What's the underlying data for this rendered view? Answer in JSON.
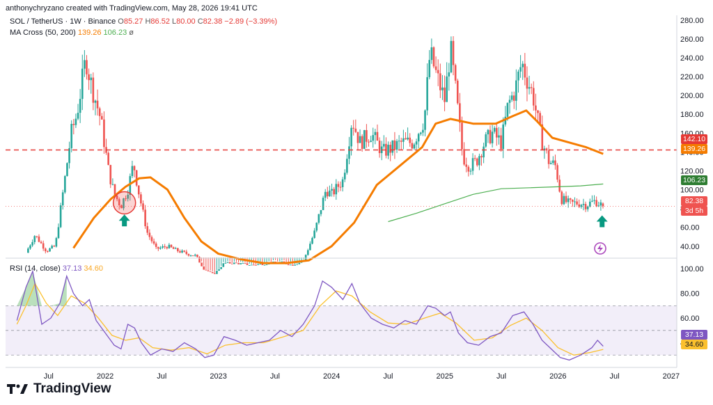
{
  "header": {
    "credit": "anthonychryzano created with TradingView.com, May 28, 2026 19:41 UTC"
  },
  "legend": {
    "symbol": "SOL / TetherUS · 1W · Binance",
    "o_label": "O",
    "o": "85.27",
    "h_label": "H",
    "h": "86.52",
    "l_label": "L",
    "l": "80.00",
    "c_label": "C",
    "c": "82.38",
    "change": "−2.89 (−3.39%)",
    "ma_title": "MA Cross (50, 200)",
    "ma50": "139.26",
    "ma200": "106.23",
    "ma_extra": "ø",
    "rsi_title": "RSI (14, close)",
    "rsi": "37.13",
    "rsi_ma": "34.60"
  },
  "price_tags": {
    "level": "142.10",
    "ma50": "139.26",
    "ma200": "106.23",
    "last": "82.38",
    "countdown": "3d 5h",
    "rsi": "37.13",
    "rsi_ma": "34.60"
  },
  "footer": {
    "brand": "TradingView"
  },
  "colors": {
    "up": "#26a69a",
    "down": "#ef5350",
    "ma50": "#f57c00",
    "ma200": "#4caf50",
    "rsi": "#7e57c2",
    "rsi_ma": "#fbc02d",
    "resistance": "#e53935",
    "arrow": "#089981"
  },
  "chart_data": [
    {
      "type": "candlestick",
      "title": "SOL / TetherUS · 1W · Binance",
      "y_ticks": [
        40,
        60,
        80,
        100,
        120,
        140,
        160,
        180,
        200,
        220,
        240,
        260,
        280
      ],
      "ylim": [
        28,
        285
      ],
      "x_ticks": [
        "Jul",
        "2022",
        "Jul",
        "2023",
        "Jul",
        "2024",
        "Jul",
        "2025",
        "Jul",
        "2026",
        "Jul",
        "2027"
      ],
      "anchors": [
        [
          2021.3,
          33
        ],
        [
          2021.38,
          52
        ],
        [
          2021.48,
          35
        ],
        [
          2021.56,
          40
        ],
        [
          2021.64,
          108
        ],
        [
          2021.7,
          160
        ],
        [
          2021.75,
          180
        ],
        [
          2021.83,
          240
        ],
        [
          2021.87,
          215
        ],
        [
          2021.96,
          175
        ],
        [
          2022.03,
          120
        ],
        [
          2022.08,
          95
        ],
        [
          2022.14,
          83
        ],
        [
          2022.2,
          100
        ],
        [
          2022.25,
          128
        ],
        [
          2022.3,
          95
        ],
        [
          2022.37,
          55
        ],
        [
          2022.45,
          37
        ],
        [
          2022.55,
          40
        ],
        [
          2022.62,
          36
        ],
        [
          2022.72,
          32
        ],
        [
          2022.8,
          30
        ],
        [
          2022.87,
          16
        ],
        [
          2022.96,
          10
        ],
        [
          2023.05,
          22
        ],
        [
          2023.15,
          22
        ],
        [
          2023.3,
          20
        ],
        [
          2023.45,
          22
        ],
        [
          2023.55,
          23
        ],
        [
          2023.65,
          20
        ],
        [
          2023.75,
          24
        ],
        [
          2023.85,
          55
        ],
        [
          2023.95,
          100
        ],
        [
          2024.0,
          95
        ],
        [
          2024.1,
          110
        ],
        [
          2024.18,
          175
        ],
        [
          2024.25,
          150
        ],
        [
          2024.35,
          160
        ],
        [
          2024.45,
          140
        ],
        [
          2024.55,
          145
        ],
        [
          2024.62,
          150
        ],
        [
          2024.72,
          150
        ],
        [
          2024.82,
          175
        ],
        [
          2024.87,
          245
        ],
        [
          2024.93,
          220
        ],
        [
          2025.0,
          195
        ],
        [
          2025.05,
          250
        ],
        [
          2025.1,
          200
        ],
        [
          2025.16,
          135
        ],
        [
          2025.22,
          125
        ],
        [
          2025.28,
          130
        ],
        [
          2025.35,
          150
        ],
        [
          2025.42,
          160
        ],
        [
          2025.5,
          150
        ],
        [
          2025.56,
          190
        ],
        [
          2025.62,
          205
        ],
        [
          2025.68,
          235
        ],
        [
          2025.72,
          220
        ],
        [
          2025.78,
          200
        ],
        [
          2025.85,
          155
        ],
        [
          2025.92,
          130
        ],
        [
          2025.98,
          125
        ],
        [
          2026.03,
          90
        ],
        [
          2026.1,
          85
        ],
        [
          2026.18,
          86
        ],
        [
          2026.25,
          84
        ],
        [
          2026.33,
          88
        ],
        [
          2026.4,
          82.38
        ]
      ],
      "ohlc_last": {
        "open": 85.27,
        "high": 86.52,
        "low": 80.0,
        "close": 82.38
      },
      "resistance_level": 142.1,
      "series": [
        {
          "name": "MA 50",
          "value_last": 139.26,
          "points": [
            [
              2021.72,
              38
            ],
            [
              2021.9,
              70
            ],
            [
              2022.05,
              90
            ],
            [
              2022.18,
              103
            ],
            [
              2022.3,
              112
            ],
            [
              2022.4,
              113
            ],
            [
              2022.55,
              100
            ],
            [
              2022.7,
              70
            ],
            [
              2022.85,
              45
            ],
            [
              2023.0,
              32
            ],
            [
              2023.2,
              26
            ],
            [
              2023.4,
              22
            ],
            [
              2023.6,
              22
            ],
            [
              2023.8,
              25
            ],
            [
              2024.0,
              40
            ],
            [
              2024.2,
              65
            ],
            [
              2024.4,
              105
            ],
            [
              2024.6,
              125
            ],
            [
              2024.8,
              145
            ],
            [
              2024.92,
              170
            ],
            [
              2025.05,
              175
            ],
            [
              2025.25,
              170
            ],
            [
              2025.45,
              170
            ],
            [
              2025.6,
              178
            ],
            [
              2025.72,
              184
            ],
            [
              2025.82,
              172
            ],
            [
              2025.95,
              155
            ],
            [
              2026.1,
              150
            ],
            [
              2026.25,
              145
            ],
            [
              2026.4,
              138
            ]
          ]
        },
        {
          "name": "MA 200",
          "value_last": 106.23,
          "points": [
            [
              2024.5,
              66
            ],
            [
              2024.75,
              75
            ],
            [
              2025.0,
              85
            ],
            [
              2025.25,
              95
            ],
            [
              2025.5,
              101
            ],
            [
              2025.75,
              102
            ],
            [
              2026.0,
              103
            ],
            [
              2026.2,
              104
            ],
            [
              2026.4,
              106
            ]
          ]
        }
      ],
      "markers": [
        {
          "type": "circle",
          "x": 2022.17,
          "y": 86
        },
        {
          "type": "arrow-up",
          "x": 2022.17,
          "y": 67
        },
        {
          "type": "arrow-up",
          "x": 2026.39,
          "y": 66
        }
      ]
    },
    {
      "type": "line",
      "title": "RSI (14, close)",
      "y_ticks": [
        40,
        60,
        80,
        100
      ],
      "ylim": [
        20,
        108
      ],
      "band": [
        30,
        70
      ],
      "series": [
        {
          "name": "RSI",
          "value_last": 37.13,
          "points": [
            [
              2021.22,
              58
            ],
            [
              2021.3,
              85
            ],
            [
              2021.36,
              98
            ],
            [
              2021.44,
              55
            ],
            [
              2021.52,
              60
            ],
            [
              2021.6,
              72
            ],
            [
              2021.66,
              94
            ],
            [
              2021.72,
              80
            ],
            [
              2021.8,
              70
            ],
            [
              2021.86,
              75
            ],
            [
              2021.92,
              58
            ],
            [
              2022.0,
              48
            ],
            [
              2022.08,
              38
            ],
            [
              2022.14,
              35
            ],
            [
              2022.2,
              55
            ],
            [
              2022.26,
              52
            ],
            [
              2022.32,
              40
            ],
            [
              2022.4,
              30
            ],
            [
              2022.5,
              35
            ],
            [
              2022.6,
              33
            ],
            [
              2022.7,
              40
            ],
            [
              2022.8,
              35
            ],
            [
              2022.88,
              28
            ],
            [
              2022.96,
              30
            ],
            [
              2023.05,
              45
            ],
            [
              2023.15,
              42
            ],
            [
              2023.25,
              38
            ],
            [
              2023.35,
              40
            ],
            [
              2023.45,
              42
            ],
            [
              2023.55,
              50
            ],
            [
              2023.65,
              45
            ],
            [
              2023.75,
              55
            ],
            [
              2023.85,
              70
            ],
            [
              2023.92,
              90
            ],
            [
              2024.0,
              85
            ],
            [
              2024.1,
              75
            ],
            [
              2024.18,
              88
            ],
            [
              2024.25,
              72
            ],
            [
              2024.35,
              60
            ],
            [
              2024.45,
              55
            ],
            [
              2024.55,
              52
            ],
            [
              2024.65,
              58
            ],
            [
              2024.75,
              55
            ],
            [
              2024.85,
              70
            ],
            [
              2024.92,
              68
            ],
            [
              2025.0,
              62
            ],
            [
              2025.05,
              65
            ],
            [
              2025.12,
              48
            ],
            [
              2025.2,
              40
            ],
            [
              2025.3,
              38
            ],
            [
              2025.4,
              45
            ],
            [
              2025.5,
              48
            ],
            [
              2025.6,
              62
            ],
            [
              2025.7,
              65
            ],
            [
              2025.78,
              55
            ],
            [
              2025.86,
              42
            ],
            [
              2025.94,
              35
            ],
            [
              2026.02,
              28
            ],
            [
              2026.1,
              26
            ],
            [
              2026.2,
              30
            ],
            [
              2026.3,
              36
            ],
            [
              2026.35,
              42
            ],
            [
              2026.4,
              37.13
            ]
          ]
        },
        {
          "name": "RSI MA",
          "value_last": 34.6,
          "points": [
            [
              2021.22,
              55
            ],
            [
              2021.3,
              70
            ],
            [
              2021.38,
              88
            ],
            [
              2021.48,
              72
            ],
            [
              2021.58,
              62
            ],
            [
              2021.7,
              78
            ],
            [
              2021.82,
              72
            ],
            [
              2021.94,
              60
            ],
            [
              2022.06,
              46
            ],
            [
              2022.18,
              42
            ],
            [
              2022.3,
              44
            ],
            [
              2022.42,
              36
            ],
            [
              2022.58,
              34
            ],
            [
              2022.74,
              36
            ],
            [
              2022.9,
              31
            ],
            [
              2023.06,
              38
            ],
            [
              2023.22,
              40
            ],
            [
              2023.4,
              40
            ],
            [
              2023.58,
              45
            ],
            [
              2023.75,
              50
            ],
            [
              2023.9,
              70
            ],
            [
              2024.04,
              82
            ],
            [
              2024.18,
              78
            ],
            [
              2024.34,
              65
            ],
            [
              2024.5,
              56
            ],
            [
              2024.66,
              55
            ],
            [
              2024.82,
              60
            ],
            [
              2024.96,
              64
            ],
            [
              2025.1,
              56
            ],
            [
              2025.26,
              42
            ],
            [
              2025.42,
              44
            ],
            [
              2025.58,
              54
            ],
            [
              2025.72,
              60
            ],
            [
              2025.86,
              50
            ],
            [
              2026.0,
              36
            ],
            [
              2026.14,
              30
            ],
            [
              2026.28,
              32
            ],
            [
              2026.4,
              34.6
            ]
          ]
        }
      ]
    }
  ]
}
